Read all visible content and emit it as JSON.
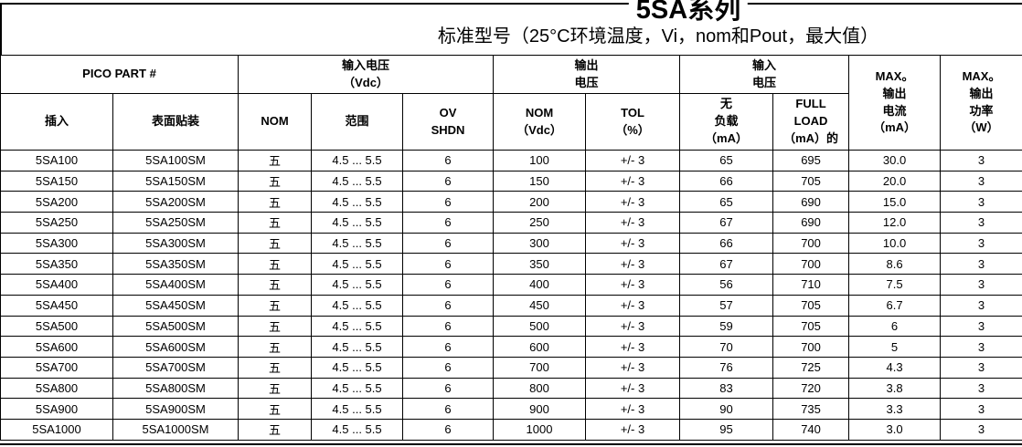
{
  "page": {
    "title": "5SA系列",
    "subtitle": "标准型号（25°C环境温度，Vi，nom和Pout，最大值）"
  },
  "table": {
    "group_headers": {
      "pico_part": "PICO PART #",
      "input_voltage": "输入电压\n（Vdc）",
      "output_voltage": "输出\n电压",
      "input_current": "输入\n电压"
    },
    "sub_headers": {
      "through_hole": "插入",
      "surface_mount": "表面贴装",
      "nom": "NOM",
      "range": "范围",
      "ov_shdn": "OV\nSHDN",
      "out_nom": "NOM\n（Vdc）",
      "tol": "TOL\n（%）",
      "no_load": "无\n负载\n（mA）",
      "full_load": "FULL\nLOAD\n（mA）的"
    },
    "spanning_headers": {
      "max_output_current": "MAX。\n输出\n电流\n（mA）",
      "max_output_power": "MAX。\n输出\n功率\n（W）"
    },
    "rows": [
      [
        "5SA100",
        "5SA100SM",
        "五",
        "4.5 ... 5.5",
        "6",
        "100",
        "+/- 3",
        "65",
        "695",
        "30.0",
        "3"
      ],
      [
        "5SA150",
        "5SA150SM",
        "五",
        "4.5 ... 5.5",
        "6",
        "150",
        "+/- 3",
        "66",
        "705",
        "20.0",
        "3"
      ],
      [
        "5SA200",
        "5SA200SM",
        "五",
        "4.5 ... 5.5",
        "6",
        "200",
        "+/- 3",
        "65",
        "690",
        "15.0",
        "3"
      ],
      [
        "5SA250",
        "5SA250SM",
        "五",
        "4.5 ... 5.5",
        "6",
        "250",
        "+/- 3",
        "67",
        "690",
        "12.0",
        "3"
      ],
      [
        "5SA300",
        "5SA300SM",
        "五",
        "4.5 ... 5.5",
        "6",
        "300",
        "+/- 3",
        "66",
        "700",
        "10.0",
        "3"
      ],
      [
        "5SA350",
        "5SA350SM",
        "五",
        "4.5 ... 5.5",
        "6",
        "350",
        "+/- 3",
        "67",
        "700",
        "8.6",
        "3"
      ],
      [
        "5SA400",
        "5SA400SM",
        "五",
        "4.5 ... 5.5",
        "6",
        "400",
        "+/- 3",
        "56",
        "710",
        "7.5",
        "3"
      ],
      [
        "5SA450",
        "5SA450SM",
        "五",
        "4.5 ... 5.5",
        "6",
        "450",
        "+/- 3",
        "57",
        "705",
        "6.7",
        "3"
      ],
      [
        "5SA500",
        "5SA500SM",
        "五",
        "4.5 ... 5.5",
        "6",
        "500",
        "+/- 3",
        "59",
        "705",
        "6",
        "3"
      ],
      [
        "5SA600",
        "5SA600SM",
        "五",
        "4.5 ... 5.5",
        "6",
        "600",
        "+/- 3",
        "70",
        "700",
        "5",
        "3"
      ],
      [
        "5SA700",
        "5SA700SM",
        "五",
        "4.5 ... 5.5",
        "6",
        "700",
        "+/- 3",
        "76",
        "725",
        "4.3",
        "3"
      ],
      [
        "5SA800",
        "5SA800SM",
        "五",
        "4.5 ... 5.5",
        "6",
        "800",
        "+/- 3",
        "83",
        "720",
        "3.8",
        "3"
      ],
      [
        "5SA900",
        "5SA900SM",
        "五",
        "4.5 ... 5.5",
        "6",
        "900",
        "+/- 3",
        "90",
        "735",
        "3.3",
        "3"
      ],
      [
        "5SA1000",
        "5SA1000SM",
        "五",
        "4.5 ... 5.5",
        "6",
        "1000",
        "+/- 3",
        "95",
        "740",
        "3.0",
        "3"
      ]
    ]
  }
}
